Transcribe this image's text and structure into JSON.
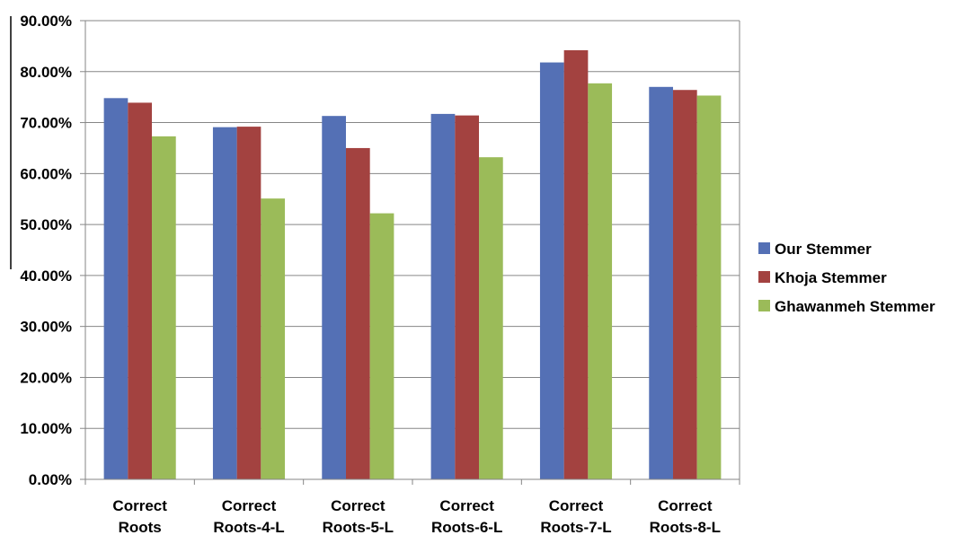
{
  "chart_data": {
    "type": "bar",
    "categories": [
      [
        "Correct",
        "Roots"
      ],
      [
        "Correct",
        "Roots-4-L"
      ],
      [
        "Correct",
        "Roots-5-L"
      ],
      [
        "Correct",
        "Roots-6-L"
      ],
      [
        "Correct",
        "Roots-7-L"
      ],
      [
        "Correct",
        "Roots-8-L"
      ]
    ],
    "series": [
      {
        "name": "Our Stemmer",
        "color": "#5470b5",
        "values": [
          74.8,
          69.1,
          71.3,
          71.7,
          81.8,
          77.0
        ]
      },
      {
        "name": "Khoja Stemmer",
        "color": "#a34240",
        "values": [
          73.9,
          69.2,
          65.0,
          71.4,
          84.2,
          76.4
        ]
      },
      {
        "name": "Ghawanmeh Stemmer",
        "color": "#9bbb59",
        "values": [
          67.3,
          55.1,
          52.2,
          63.2,
          77.7,
          75.3
        ]
      }
    ],
    "yticks": [
      "0.00%",
      "10.00%",
      "20.00%",
      "30.00%",
      "40.00%",
      "50.00%",
      "60.00%",
      "70.00%",
      "80.00%",
      "90.00%"
    ],
    "ylim": [
      0,
      90
    ],
    "grid": true,
    "legend_position": "right",
    "title": "",
    "xlabel": "",
    "ylabel": ""
  }
}
